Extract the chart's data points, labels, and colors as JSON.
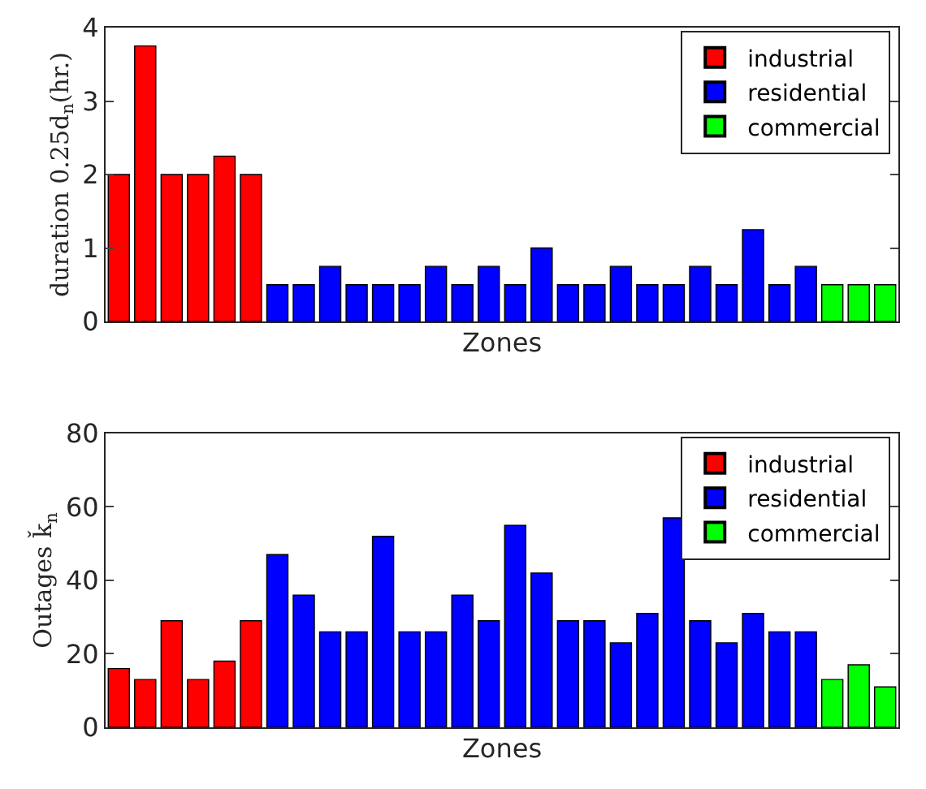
{
  "chart_data": [
    {
      "type": "bar",
      "xlabel": "Zones",
      "ylabel": "duration 0.25d$_{n}$(hr.)",
      "categories": [
        null,
        null,
        null,
        null,
        null,
        null,
        null,
        null,
        null,
        null,
        null,
        null,
        null,
        null,
        null,
        null,
        null,
        null,
        null,
        null,
        null,
        null,
        null,
        null,
        null,
        null,
        null,
        null,
        null,
        null
      ],
      "series": [
        {
          "name": "industrial",
          "color": "#ff0000",
          "values": [
            2,
            3.75,
            2,
            2,
            2.25,
            2,
            null,
            null,
            null,
            null,
            null,
            null,
            null,
            null,
            null,
            null,
            null,
            null,
            null,
            null,
            null,
            null,
            null,
            null,
            null,
            null,
            null,
            null,
            null,
            null
          ]
        },
        {
          "name": "residential",
          "color": "#0000ff",
          "values": [
            null,
            null,
            null,
            null,
            null,
            null,
            0.5,
            0.5,
            0.75,
            0.5,
            0.5,
            0.5,
            0.75,
            0.5,
            0.75,
            0.5,
            1,
            0.5,
            0.5,
            0.75,
            0.5,
            0.5,
            0.75,
            0.5,
            1.25,
            0.5,
            0.75,
            null,
            null,
            null
          ]
        },
        {
          "name": "commercial",
          "color": "#00ff00",
          "values": [
            null,
            null,
            null,
            null,
            null,
            null,
            null,
            null,
            null,
            null,
            null,
            null,
            null,
            null,
            null,
            null,
            null,
            null,
            null,
            null,
            null,
            null,
            null,
            null,
            null,
            null,
            null,
            0.5,
            0.5,
            0.5
          ]
        }
      ],
      "ylim": [
        0,
        4
      ],
      "yticks": [
        0,
        1,
        2,
        3,
        4
      ],
      "grid": false,
      "legend": "top right"
    },
    {
      "type": "bar",
      "xlabel": "Zones",
      "ylabel": "Outages ǩ$_{n}$",
      "categories": [
        null,
        null,
        null,
        null,
        null,
        null,
        null,
        null,
        null,
        null,
        null,
        null,
        null,
        null,
        null,
        null,
        null,
        null,
        null,
        null,
        null,
        null,
        null,
        null,
        null,
        null,
        null,
        null,
        null,
        null
      ],
      "series": [
        {
          "name": "industrial",
          "color": "#ff0000",
          "values": [
            16,
            13,
            29,
            13,
            18,
            29,
            null,
            null,
            null,
            null,
            null,
            null,
            null,
            null,
            null,
            null,
            null,
            null,
            null,
            null,
            null,
            null,
            null,
            null,
            null,
            null,
            null,
            null,
            null,
            null
          ]
        },
        {
          "name": "residential",
          "color": "#0000ff",
          "values": [
            null,
            null,
            null,
            null,
            null,
            null,
            47,
            36,
            26,
            26,
            52,
            26,
            26,
            36,
            29,
            55,
            42,
            29,
            29,
            23,
            31,
            57,
            29,
            23,
            31,
            26,
            26,
            null,
            null,
            null
          ]
        },
        {
          "name": "commercial",
          "color": "#00ff00",
          "values": [
            null,
            null,
            null,
            null,
            null,
            null,
            null,
            null,
            null,
            null,
            null,
            null,
            null,
            null,
            null,
            null,
            null,
            null,
            null,
            null,
            null,
            null,
            null,
            null,
            null,
            null,
            null,
            13,
            17,
            11
          ]
        }
      ],
      "ylim": [
        0,
        80
      ],
      "yticks": [
        0,
        20,
        40,
        60,
        80
      ],
      "grid": false,
      "legend": "top right"
    }
  ]
}
